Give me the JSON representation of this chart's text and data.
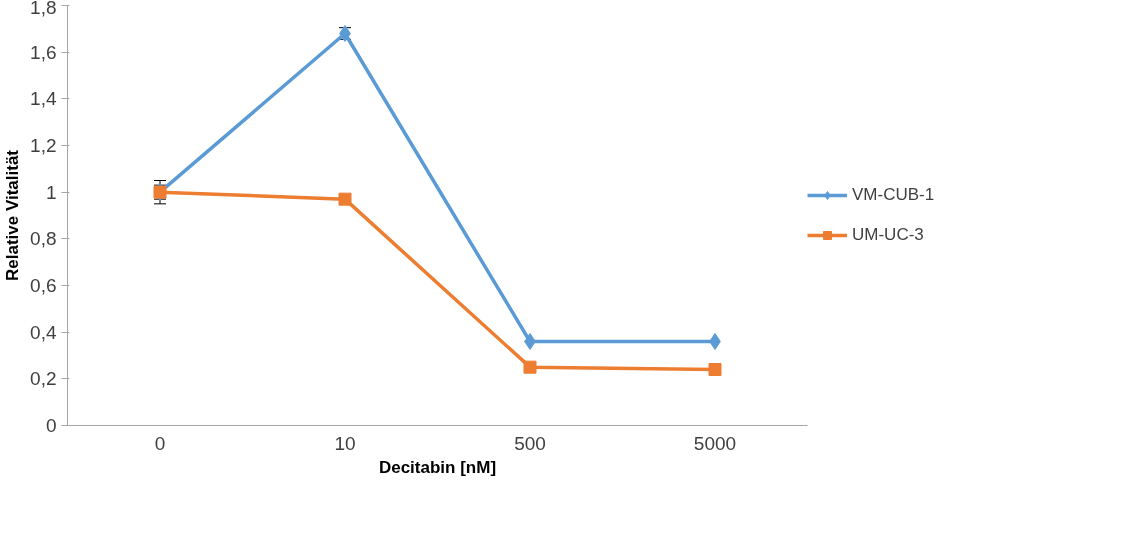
{
  "chart_data": {
    "type": "line",
    "xlabel": "Decitabin [nM]",
    "ylabel": "Relative Vitalität",
    "categories": [
      "0",
      "10",
      "500",
      "5000"
    ],
    "ylim": [
      0,
      1.8
    ],
    "yticks": [
      0,
      {
        "value": 0.2,
        "label": "0,2"
      },
      {
        "value": 0.4,
        "label": "0,4"
      },
      {
        "value": 0.6,
        "label": "0,6"
      },
      {
        "value": 0.8,
        "label": "0,8"
      },
      1,
      {
        "value": 1.2,
        "label": "1,2"
      },
      {
        "value": 1.4,
        "label": "1,4"
      },
      {
        "value": 1.6,
        "label": "1,6"
      },
      {
        "value": 1.8,
        "label": "1,8"
      }
    ],
    "grid": false,
    "legend": "right",
    "line_style": "solid",
    "series": [
      {
        "name": "VM-CUB-1",
        "color": "#5b9bd5",
        "marker": "diamond",
        "values": [
          1.0,
          1.68,
          0.36,
          0.36
        ],
        "errors": [
          0.05,
          0.025,
          null,
          null
        ]
      },
      {
        "name": "UM-UC-3",
        "color": "#ed7d31",
        "marker": "square",
        "values": [
          1.0,
          0.97,
          0.25,
          0.24
        ],
        "errors": [
          0.03,
          null,
          null,
          null
        ]
      }
    ]
  }
}
